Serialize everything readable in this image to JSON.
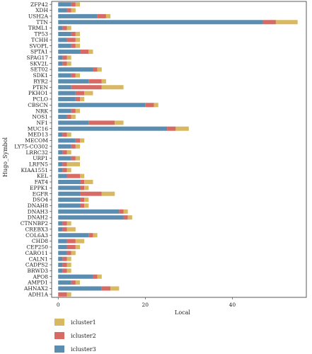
{
  "chart_data": {
    "type": "bar",
    "orientation": "horizontal",
    "stacked": true,
    "xlabel": "Local",
    "ylabel": "Hugo_Symbol",
    "xlim": [
      -1.5,
      57
    ],
    "xticks": [
      0,
      20,
      40
    ],
    "grid": false,
    "legend_position": "bottom-left",
    "categories": [
      "ZFP42",
      "XDH",
      "USH2A",
      "TTN",
      "TRML1",
      "TP53",
      "TCHH",
      "SVOPL",
      "SPTA1",
      "SPAG17",
      "SKV2L",
      "SET02",
      "SDK1",
      "RYR2",
      "PTEN",
      "PKHO1",
      "PCLO",
      "CBSCN",
      "NRK",
      "NOS1",
      "NF1",
      "MUC16",
      "MED13",
      "MECOM",
      "LY75-CO302",
      "LRRC32",
      "URP1",
      "LRFN5",
      "KIAA1551",
      "KEL",
      "FAT4",
      "EPPK1",
      "EGFR",
      "DSO4",
      "DNAH8",
      "DNAH3",
      "DNAH2",
      "CTNNBP2",
      "CREBX3",
      "COL6A3",
      "CHD8",
      "CEP250",
      "CARO11",
      "CALN1",
      "CADPS2",
      "BRWD3",
      "APO8",
      "AMPD1",
      "AHNAX2",
      "ADH1A"
    ],
    "series": [
      {
        "name": "icluster3",
        "color": "#5b8db0",
        "values": [
          3,
          2,
          9,
          47,
          1,
          3,
          2,
          3,
          5,
          1,
          1,
          8,
          3,
          7,
          3,
          4,
          4,
          20,
          3,
          2,
          7,
          25,
          1,
          4,
          3,
          1,
          3,
          1,
          1,
          2,
          5,
          5,
          5,
          5,
          5,
          14,
          15,
          1,
          1,
          7,
          2,
          2,
          2,
          1,
          1,
          1,
          8,
          3,
          10,
          0
        ]
      },
      {
        "name": "icluster2",
        "color": "#d76a64",
        "values": [
          1,
          1,
          2,
          3,
          1,
          1,
          2,
          1,
          2,
          1,
          1,
          1,
          1,
          3,
          7,
          2,
          1,
          2,
          1,
          1,
          6,
          2,
          1,
          1,
          1,
          1,
          1,
          1,
          1,
          3,
          1,
          1,
          5,
          1,
          1,
          1,
          1,
          1,
          1,
          1,
          2,
          2,
          1,
          1,
          1,
          1,
          1,
          1,
          2,
          2
        ]
      },
      {
        "name": "icluster1",
        "color": "#d9b862",
        "values": [
          1,
          1,
          1,
          5,
          1,
          1,
          1,
          1,
          1,
          1,
          1,
          1,
          1,
          1,
          5,
          2,
          1,
          1,
          1,
          1,
          2,
          3,
          1,
          1,
          1,
          1,
          1,
          3,
          1,
          1,
          2,
          1,
          3,
          1,
          1,
          1,
          1,
          1,
          2,
          1,
          2,
          1,
          1,
          1,
          1,
          1,
          1,
          1,
          2,
          1
        ]
      }
    ]
  }
}
